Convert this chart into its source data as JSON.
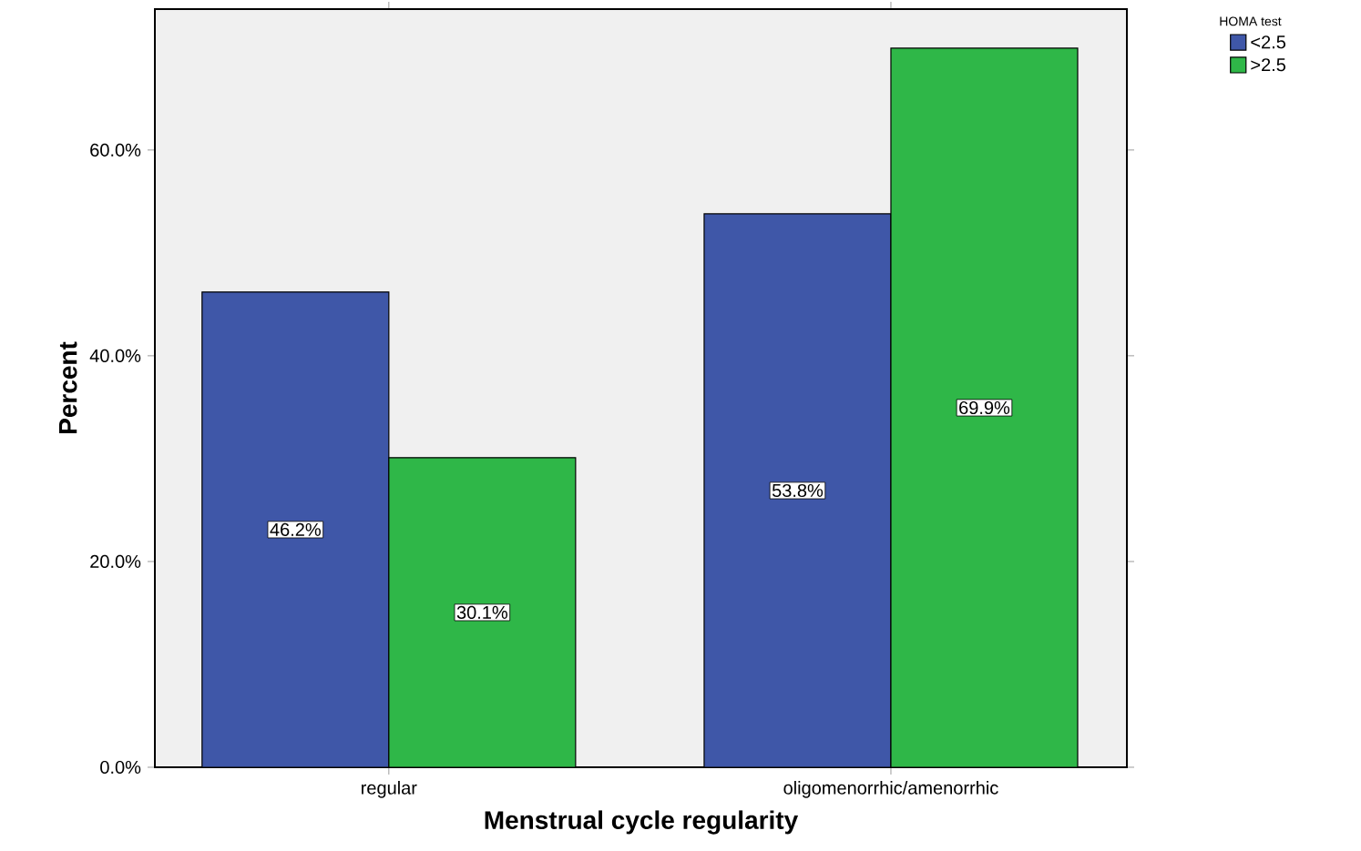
{
  "chart_data": {
    "type": "bar",
    "xlabel": "Menstrual cycle regularity",
    "ylabel": "Percent",
    "legend_title": "HOMA test",
    "legend": "top right",
    "categories": [
      "regular",
      "oligomenorrhic/amenorrhic"
    ],
    "series": [
      {
        "name": "<2.5",
        "color": "#3f57a8",
        "values": [
          46.2,
          53.8
        ],
        "value_labels": [
          "46.2%",
          "53.8%"
        ]
      },
      {
        "name": ">2.5",
        "color": "#2fb748",
        "values": [
          30.1,
          69.9
        ],
        "value_labels": [
          "30.1%",
          "69.9%"
        ]
      }
    ],
    "ylim": [
      0,
      73.7
    ],
    "yticks": [
      {
        "value": 0,
        "label": "0.0%"
      },
      {
        "value": 20,
        "label": "20.0%"
      },
      {
        "value": 40,
        "label": "40.0%"
      },
      {
        "value": 60,
        "label": "60.0%"
      }
    ]
  }
}
